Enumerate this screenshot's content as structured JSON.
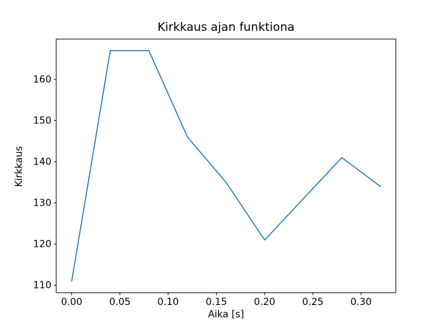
{
  "chart_data": {
    "type": "line",
    "title": "Kirkkaus ajan funktiona",
    "xlabel": "Aika [s]",
    "ylabel": "Kirkkaus",
    "x": [
      0.0,
      0.04,
      0.08,
      0.12,
      0.16,
      0.2,
      0.24,
      0.28,
      0.32
    ],
    "y": [
      111,
      167,
      167,
      146,
      135,
      121,
      131,
      141,
      134
    ],
    "xlim": [
      -0.016,
      0.336
    ],
    "ylim": [
      108.2,
      169.8
    ],
    "xtick_values": [
      0.0,
      0.05,
      0.1,
      0.15,
      0.2,
      0.25,
      0.3
    ],
    "xtick_labels": [
      "0.00",
      "0.05",
      "0.10",
      "0.15",
      "0.20",
      "0.25",
      "0.30"
    ],
    "ytick_values": [
      110,
      120,
      130,
      140,
      150,
      160
    ],
    "ytick_labels": [
      "110",
      "120",
      "130",
      "140",
      "150",
      "160"
    ],
    "line_color": "#1f77b4",
    "spine_color": "#000000",
    "background_color": "#ffffff",
    "grid": false,
    "legend_position": "none"
  }
}
